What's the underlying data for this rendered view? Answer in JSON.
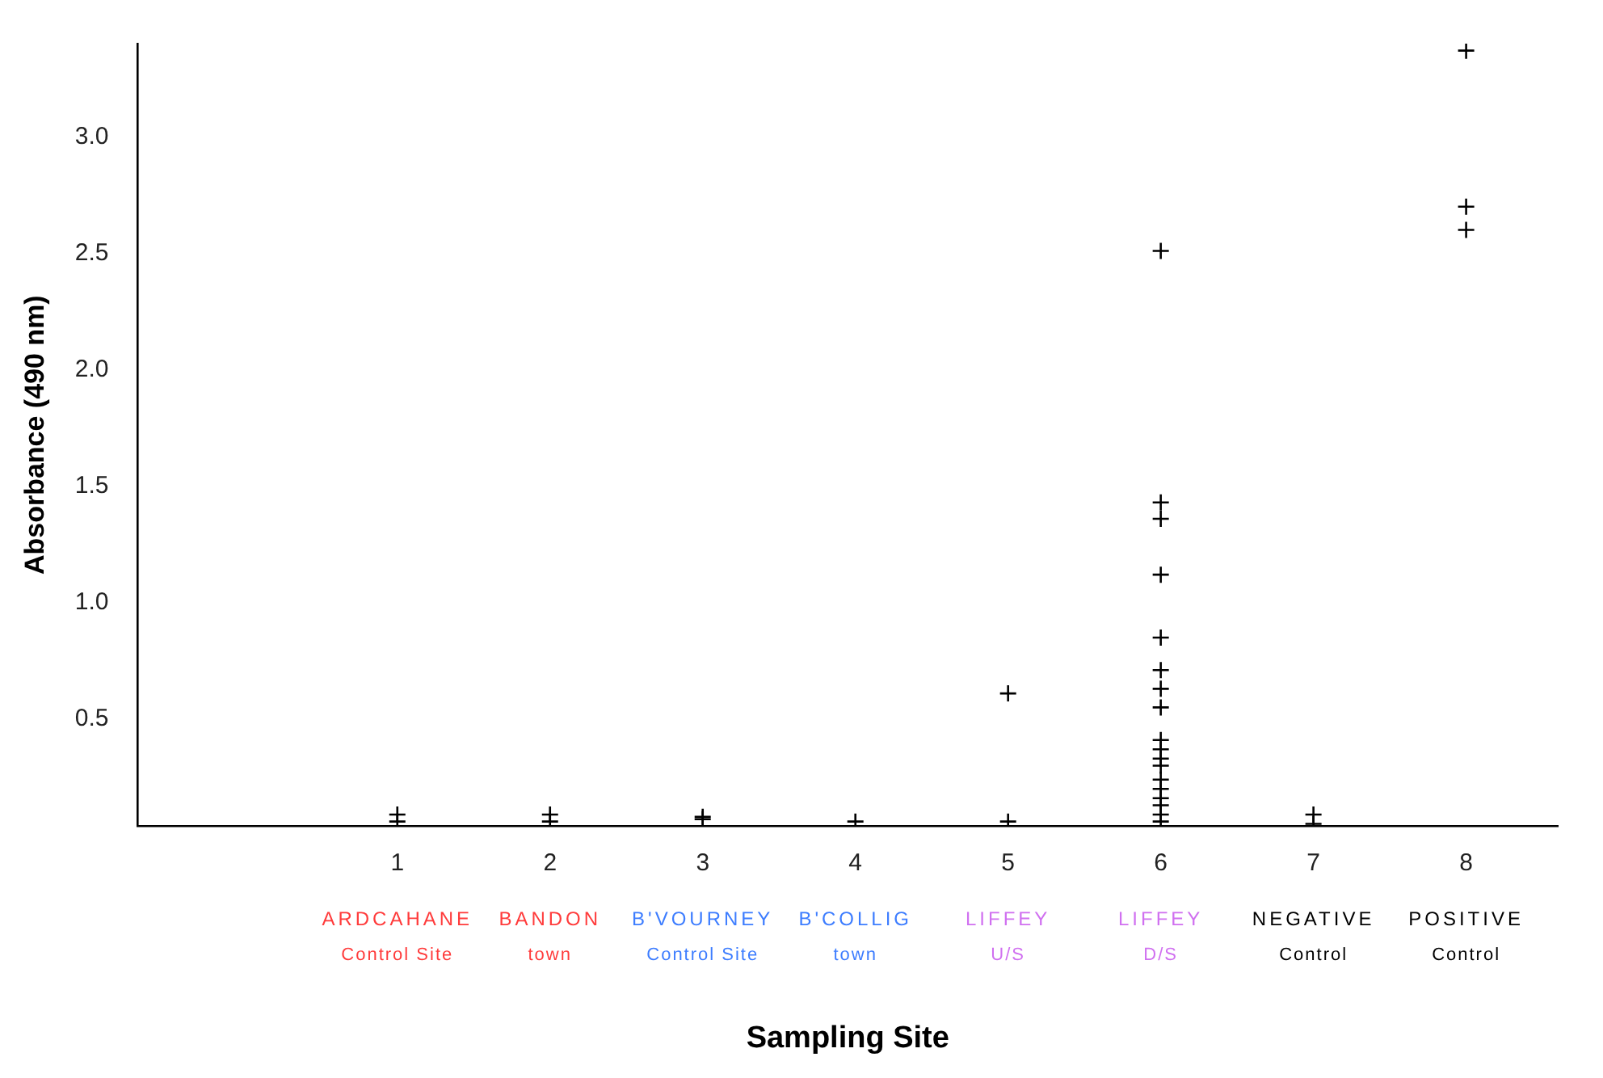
{
  "chart_data": {
    "type": "scatter",
    "xlabel": "Sampling Site",
    "ylabel": "Absorbance (490 nm)",
    "series": [
      {
        "color": "#000000",
        "x": [
          1,
          1,
          2,
          2,
          3,
          3,
          4,
          5,
          5,
          6,
          6,
          6,
          6,
          6,
          6,
          6,
          6,
          6,
          6,
          6,
          6,
          6,
          6,
          6,
          6,
          6,
          6,
          7,
          7,
          8,
          8,
          8
        ],
        "values": [
          0.09,
          0.06,
          0.09,
          0.06,
          0.08,
          0.07,
          0.06,
          0.06,
          0.61,
          2.51,
          1.43,
          1.36,
          1.12,
          0.85,
          0.71,
          0.63,
          0.55,
          0.41,
          0.37,
          0.33,
          0.3,
          0.24,
          0.2,
          0.16,
          0.13,
          0.09,
          0.06,
          0.09,
          0.05,
          3.37,
          2.7,
          2.6
        ]
      }
    ],
    "xlim": [
      -0.7,
      8.6
    ],
    "xticks": [
      1,
      2,
      3,
      4,
      5,
      6,
      7,
      8
    ],
    "ylim": [
      0.04,
      3.4
    ],
    "yticks": [
      {
        "value": 0.5,
        "label": "0.5"
      },
      {
        "value": 1,
        "label": "1.0"
      },
      {
        "value": 1.5,
        "label": "1.5"
      },
      {
        "value": 2,
        "label": "2.0"
      },
      {
        "value": 2.5,
        "label": "2.5"
      },
      {
        "value": 3,
        "label": "3.0"
      }
    ],
    "annotations": [
      "ARDCAHANE\nControl Site",
      "BANDON\ntown",
      "B'VOURNEY\nControl Site",
      "B'COLLIG\ntown",
      "LIFFEY\nU/S",
      "LIFFEY\nD/S",
      "NEGATIVE\nControl",
      "POSITIVE\nControl"
    ],
    "marker": "cross",
    "grid": false,
    "legend": false
  }
}
